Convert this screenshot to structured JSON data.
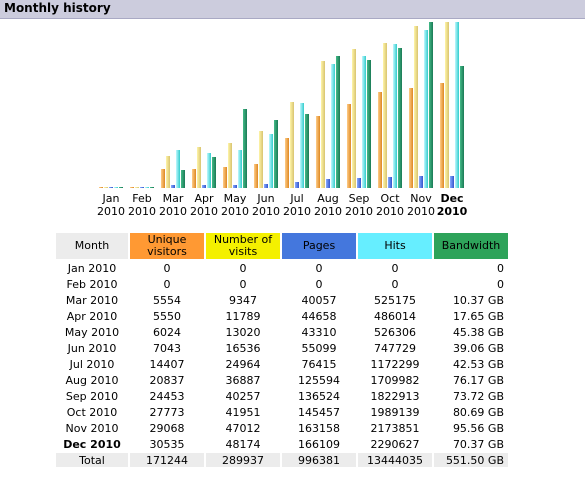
{
  "section_title": "Monthly history",
  "colors": {
    "unique_visitors": "#ff9933",
    "visits": "#f4f000",
    "pages": "#4477dd",
    "hits": "#66eeff",
    "bandwidth": "#2ea35a"
  },
  "table": {
    "headers": {
      "month": "Month",
      "unique_visitors": "Unique visitors",
      "visits": "Number of visits",
      "pages": "Pages",
      "hits": "Hits",
      "bandwidth": "Bandwidth"
    },
    "rows": [
      {
        "month": "Jan 2010",
        "uv": "0",
        "visits": "0",
        "pages": "0",
        "hits": "0",
        "bw": "0"
      },
      {
        "month": "Feb 2010",
        "uv": "0",
        "visits": "0",
        "pages": "0",
        "hits": "0",
        "bw": "0"
      },
      {
        "month": "Mar 2010",
        "uv": "5554",
        "visits": "9347",
        "pages": "40057",
        "hits": "525175",
        "bw": "10.37 GB"
      },
      {
        "month": "Apr 2010",
        "uv": "5550",
        "visits": "11789",
        "pages": "44658",
        "hits": "486014",
        "bw": "17.65 GB"
      },
      {
        "month": "May 2010",
        "uv": "6024",
        "visits": "13020",
        "pages": "43310",
        "hits": "526306",
        "bw": "45.38 GB"
      },
      {
        "month": "Jun 2010",
        "uv": "7043",
        "visits": "16536",
        "pages": "55099",
        "hits": "747729",
        "bw": "39.06 GB"
      },
      {
        "month": "Jul 2010",
        "uv": "14407",
        "visits": "24964",
        "pages": "76415",
        "hits": "1172299",
        "bw": "42.53 GB"
      },
      {
        "month": "Aug 2010",
        "uv": "20837",
        "visits": "36887",
        "pages": "125594",
        "hits": "1709982",
        "bw": "76.17 GB"
      },
      {
        "month": "Sep 2010",
        "uv": "24453",
        "visits": "40257",
        "pages": "136524",
        "hits": "1822913",
        "bw": "73.72 GB"
      },
      {
        "month": "Oct 2010",
        "uv": "27773",
        "visits": "41951",
        "pages": "145457",
        "hits": "1989139",
        "bw": "80.69 GB"
      },
      {
        "month": "Nov 2010",
        "uv": "29068",
        "visits": "47012",
        "pages": "163158",
        "hits": "2173851",
        "bw": "95.56 GB"
      },
      {
        "month": "Dec 2010",
        "uv": "30535",
        "visits": "48174",
        "pages": "166109",
        "hits": "2290627",
        "bw": "70.37 GB",
        "current": true
      }
    ],
    "total": {
      "month": "Total",
      "uv": "171244",
      "visits": "289937",
      "pages": "996381",
      "hits": "13444035",
      "bw": "551.50 GB"
    }
  },
  "chart_data": {
    "type": "bar",
    "categories": [
      "Jan 2010",
      "Feb 2010",
      "Mar 2010",
      "Apr 2010",
      "May 2010",
      "Jun 2010",
      "Jul 2010",
      "Aug 2010",
      "Sep 2010",
      "Oct 2010",
      "Nov 2010",
      "Dec 2010"
    ],
    "month_labels": [
      "Jan",
      "Feb",
      "Mar",
      "Apr",
      "May",
      "Jun",
      "Jul",
      "Aug",
      "Sep",
      "Oct",
      "Nov",
      "Dec"
    ],
    "year_label": "2010",
    "current_month_index": 11,
    "series": [
      {
        "key": "unique_visitors",
        "values": [
          0,
          0,
          5554,
          5550,
          6024,
          7043,
          14407,
          20837,
          24453,
          27773,
          29068,
          30535
        ]
      },
      {
        "key": "visits",
        "values": [
          0,
          0,
          9347,
          11789,
          13020,
          16536,
          24964,
          36887,
          40257,
          41951,
          47012,
          48174
        ]
      },
      {
        "key": "pages",
        "values": [
          0,
          0,
          40057,
          44658,
          43310,
          55099,
          76415,
          125594,
          136524,
          145457,
          163158,
          166109
        ]
      },
      {
        "key": "hits",
        "values": [
          0,
          0,
          525175,
          486014,
          526306,
          747729,
          1172299,
          1709982,
          1822913,
          1989139,
          2173851,
          2290627
        ]
      },
      {
        "key": "bandwidth_gb",
        "values": [
          0,
          0,
          10.37,
          17.65,
          45.38,
          39.06,
          42.53,
          76.17,
          73.72,
          80.69,
          95.56,
          70.37
        ]
      }
    ]
  }
}
